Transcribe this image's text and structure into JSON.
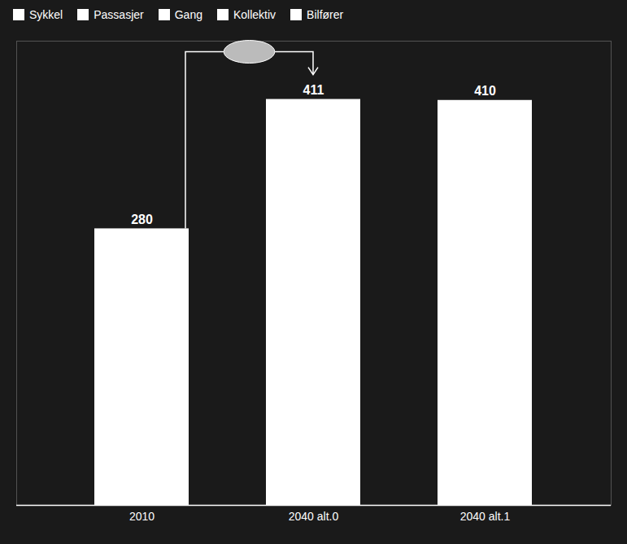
{
  "chart_data": {
    "type": "bar",
    "categories": [
      "2010",
      "2040 alt.0",
      "2040 alt.1"
    ],
    "values": [
      280,
      411,
      410
    ],
    "color": "#ffffff",
    "ylim": [
      0,
      470
    ],
    "grid": false,
    "data_labels": true,
    "tick_labels": "x",
    "legend": "upper left",
    "legend_labels": [
      "Sykkel",
      "Passasjer",
      "Gang",
      "Kollektiv",
      "Bilfører"
    ]
  }
}
